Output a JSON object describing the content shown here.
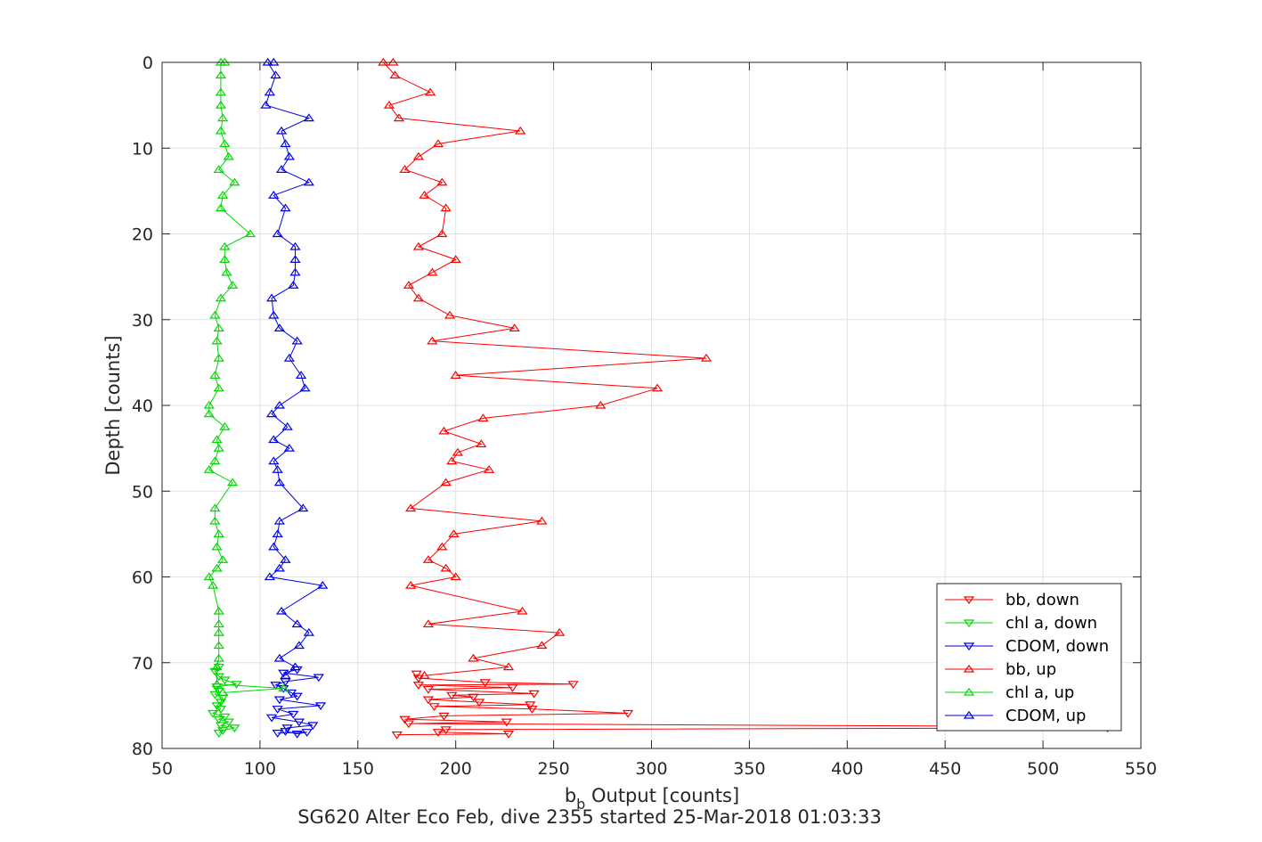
{
  "chart_data": {
    "type": "line",
    "title": "SG620 Alter Eco Feb, dive 2355 started 25-Mar-2018 01:03:33",
    "xlabel_main": "b",
    "xlabel_sub": "b",
    "xlabel_rest": " Output [counts]",
    "ylabel": "Depth [counts]",
    "xlim": [
      50,
      550
    ],
    "ylim": [
      0,
      80
    ],
    "y_reversed": true,
    "grid": true,
    "legend_position": "bottom-right",
    "xticks": [
      "50",
      "100",
      "150",
      "200",
      "250",
      "300",
      "350",
      "400",
      "450",
      "500",
      "550"
    ],
    "yticks": [
      "0",
      "10",
      "20",
      "30",
      "40",
      "50",
      "60",
      "70",
      "80"
    ],
    "series": [
      {
        "name": "bb, down",
        "color": "#ff0000",
        "marker": "triangle-down",
        "points": [
          [
            180,
            71.3
          ],
          [
            181,
            71.8
          ],
          [
            215,
            72.3
          ],
          [
            260,
            72.5
          ],
          [
            181,
            72.6
          ],
          [
            229,
            72.9
          ],
          [
            186,
            73.1
          ],
          [
            240,
            73.6
          ],
          [
            198,
            73.8
          ],
          [
            209,
            74.0
          ],
          [
            186,
            74.3
          ],
          [
            212,
            74.6
          ],
          [
            238,
            74.9
          ],
          [
            189,
            75.1
          ],
          [
            239,
            75.4
          ],
          [
            288,
            75.9
          ],
          [
            194,
            76.2
          ],
          [
            174,
            76.6
          ],
          [
            226,
            76.9
          ],
          [
            176,
            77.1
          ],
          [
            465,
            77.4
          ],
          [
            533,
            77.6
          ],
          [
            195,
            77.8
          ],
          [
            191,
            78.1
          ],
          [
            227,
            78.3
          ],
          [
            170,
            78.4
          ]
        ]
      },
      {
        "name": "chl a, down",
        "color": "#00d800",
        "marker": "triangle-down",
        "points": [
          [
            79,
            70.5
          ],
          [
            77,
            71.0
          ],
          [
            79,
            71.6
          ],
          [
            82,
            72.0
          ],
          [
            88,
            72.5
          ],
          [
            78,
            72.8
          ],
          [
            79,
            73.3
          ],
          [
            77,
            73.7
          ],
          [
            81,
            74.1
          ],
          [
            80,
            74.6
          ],
          [
            78,
            75.0
          ],
          [
            80,
            75.4
          ],
          [
            76,
            75.9
          ],
          [
            82,
            76.3
          ],
          [
            79,
            76.6
          ],
          [
            84,
            76.9
          ],
          [
            80,
            77.3
          ],
          [
            87,
            77.6
          ],
          [
            81,
            77.9
          ],
          [
            79,
            78.2
          ]
        ]
      },
      {
        "name": "CDOM, down",
        "color": "#0000e8",
        "marker": "triangle-down",
        "points": [
          [
            119,
            70.8
          ],
          [
            112,
            71.2
          ],
          [
            130,
            71.7
          ],
          [
            113,
            72.2
          ],
          [
            108,
            72.6
          ],
          [
            112,
            73.0
          ],
          [
            116,
            73.5
          ],
          [
            119,
            73.9
          ],
          [
            110,
            74.3
          ],
          [
            131,
            75.0
          ],
          [
            109,
            75.4
          ],
          [
            117,
            76.0
          ],
          [
            106,
            76.4
          ],
          [
            120,
            76.9
          ],
          [
            127,
            77.3
          ],
          [
            114,
            77.6
          ],
          [
            113,
            78.0
          ],
          [
            119,
            78.3
          ],
          [
            124,
            78.1
          ],
          [
            109,
            78.2
          ]
        ]
      },
      {
        "name": "bb, up",
        "color": "#ff0000",
        "marker": "triangle-up",
        "points": [
          [
            168,
            0.0
          ],
          [
            163,
            0.0
          ],
          [
            169,
            1.5
          ],
          [
            187,
            3.5
          ],
          [
            166,
            5.0
          ],
          [
            171,
            6.5
          ],
          [
            233,
            8.0
          ],
          [
            191,
            9.5
          ],
          [
            181,
            11.0
          ],
          [
            174,
            12.5
          ],
          [
            193,
            14.0
          ],
          [
            184,
            15.5
          ],
          [
            195,
            17.0
          ],
          [
            193,
            20.0
          ],
          [
            181,
            21.5
          ],
          [
            200,
            23.0
          ],
          [
            188,
            24.5
          ],
          [
            176,
            26.0
          ],
          [
            181,
            27.5
          ],
          [
            197,
            29.5
          ],
          [
            230,
            31.0
          ],
          [
            188,
            32.5
          ],
          [
            328,
            34.5
          ],
          [
            200,
            36.5
          ],
          [
            303,
            38.0
          ],
          [
            274,
            40.0
          ],
          [
            214,
            41.5
          ],
          [
            194,
            43.0
          ],
          [
            213,
            44.5
          ],
          [
            201,
            45.5
          ],
          [
            198,
            46.5
          ],
          [
            217,
            47.5
          ],
          [
            195,
            49.0
          ],
          [
            177,
            52.0
          ],
          [
            244,
            53.5
          ],
          [
            199,
            55.0
          ],
          [
            193,
            56.5
          ],
          [
            186,
            58.0
          ],
          [
            195,
            59.0
          ],
          [
            200,
            60.0
          ],
          [
            177,
            61.0
          ],
          [
            234,
            64.0
          ],
          [
            186,
            65.5
          ],
          [
            253,
            66.5
          ],
          [
            244,
            68.0
          ],
          [
            209,
            69.5
          ],
          [
            227,
            70.5
          ],
          [
            184,
            71.5
          ]
        ]
      },
      {
        "name": "chl a, up",
        "color": "#00d800",
        "marker": "triangle-up",
        "points": [
          [
            82,
            0.0
          ],
          [
            80,
            0.0
          ],
          [
            80,
            1.5
          ],
          [
            80,
            3.5
          ],
          [
            80,
            5.0
          ],
          [
            81,
            6.5
          ],
          [
            80,
            8.0
          ],
          [
            82,
            9.5
          ],
          [
            84,
            11.0
          ],
          [
            79,
            12.5
          ],
          [
            87,
            14.0
          ],
          [
            81,
            15.5
          ],
          [
            80,
            17.0
          ],
          [
            95,
            20.0
          ],
          [
            82,
            21.5
          ],
          [
            82,
            23.0
          ],
          [
            83,
            24.5
          ],
          [
            86,
            26.0
          ],
          [
            80,
            27.5
          ],
          [
            77,
            29.5
          ],
          [
            79,
            31.0
          ],
          [
            78,
            32.5
          ],
          [
            79,
            34.5
          ],
          [
            77,
            36.5
          ],
          [
            79,
            38.0
          ],
          [
            74,
            40.0
          ],
          [
            74,
            41.0
          ],
          [
            82,
            42.5
          ],
          [
            78,
            44.0
          ],
          [
            79,
            45.0
          ],
          [
            77,
            46.5
          ],
          [
            74,
            47.5
          ],
          [
            86,
            49.0
          ],
          [
            77,
            52.0
          ],
          [
            77,
            53.5
          ],
          [
            79,
            55.0
          ],
          [
            78,
            56.5
          ],
          [
            81,
            58.0
          ],
          [
            78,
            59.0
          ],
          [
            74,
            60.0
          ],
          [
            76,
            61.0
          ],
          [
            79,
            64.0
          ],
          [
            79,
            65.5
          ],
          [
            79,
            66.5
          ],
          [
            79,
            68.0
          ],
          [
            79,
            69.5
          ],
          [
            78,
            70.5
          ],
          [
            78,
            72.5
          ],
          [
            112,
            73.0
          ],
          [
            81,
            73.5
          ]
        ]
      },
      {
        "name": "CDOM, up",
        "color": "#0000e8",
        "marker": "triangle-up",
        "points": [
          [
            107,
            0.0
          ],
          [
            104,
            0.0
          ],
          [
            108,
            1.5
          ],
          [
            105,
            3.5
          ],
          [
            103,
            5.0
          ],
          [
            125,
            6.5
          ],
          [
            111,
            8.0
          ],
          [
            113,
            9.5
          ],
          [
            115,
            11.0
          ],
          [
            111,
            12.5
          ],
          [
            125,
            14.0
          ],
          [
            107,
            15.5
          ],
          [
            113,
            17.0
          ],
          [
            109,
            20.0
          ],
          [
            118,
            21.5
          ],
          [
            118,
            23.0
          ],
          [
            118,
            24.5
          ],
          [
            117,
            26.0
          ],
          [
            106,
            27.5
          ],
          [
            107,
            29.5
          ],
          [
            110,
            31.0
          ],
          [
            119,
            32.5
          ],
          [
            115,
            34.5
          ],
          [
            121,
            36.5
          ],
          [
            123,
            38.0
          ],
          [
            110,
            40.0
          ],
          [
            106,
            41.0
          ],
          [
            114,
            42.5
          ],
          [
            107,
            44.0
          ],
          [
            115,
            45.0
          ],
          [
            107,
            46.5
          ],
          [
            109,
            47.5
          ],
          [
            110,
            49.0
          ],
          [
            122,
            52.0
          ],
          [
            110,
            53.5
          ],
          [
            109,
            55.0
          ],
          [
            107,
            56.5
          ],
          [
            113,
            58.0
          ],
          [
            110,
            59.0
          ],
          [
            105,
            60.0
          ],
          [
            132,
            61.0
          ],
          [
            111,
            64.0
          ],
          [
            119,
            65.5
          ],
          [
            125,
            66.5
          ],
          [
            120,
            68.0
          ],
          [
            110,
            69.5
          ],
          [
            118,
            70.5
          ],
          [
            113,
            71.5
          ]
        ]
      }
    ]
  }
}
